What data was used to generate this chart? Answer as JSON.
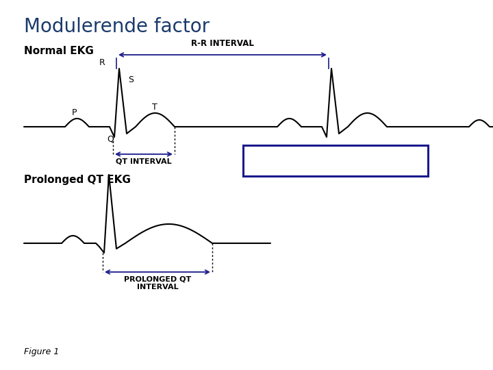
{
  "title": "Modulerende factor",
  "title_color": "#1a3a6b",
  "title_fontsize": 20,
  "bg_color": "#ffffff",
  "label_normal": "Normal EKG",
  "label_prolonged": "Prolonged QT EKG",
  "box_color": "#1a1a8c",
  "arrow_color": "#1a1a8c",
  "line_color": "#000000"
}
